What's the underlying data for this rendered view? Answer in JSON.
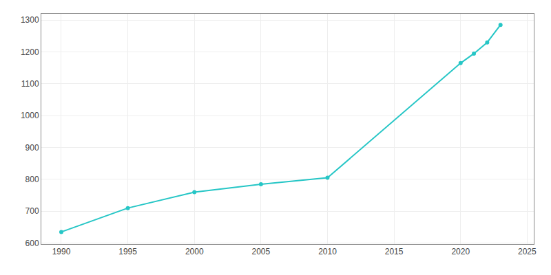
{
  "chart_data": {
    "type": "line",
    "x": [
      1990,
      1995,
      2000,
      2005,
      2010,
      2020,
      2021,
      2022,
      2023
    ],
    "values": [
      635,
      710,
      760,
      785,
      805,
      1165,
      1195,
      1230,
      1285
    ],
    "color": "#26c6c6",
    "marker": "circle",
    "xlim": [
      1988.5,
      2025.5
    ],
    "ylim": [
      597,
      1320
    ],
    "xticks": [
      1990,
      1995,
      2000,
      2005,
      2010,
      2015,
      2020,
      2025
    ],
    "yticks": [
      600,
      700,
      800,
      900,
      1000,
      1100,
      1200,
      1300
    ],
    "grid": true
  }
}
